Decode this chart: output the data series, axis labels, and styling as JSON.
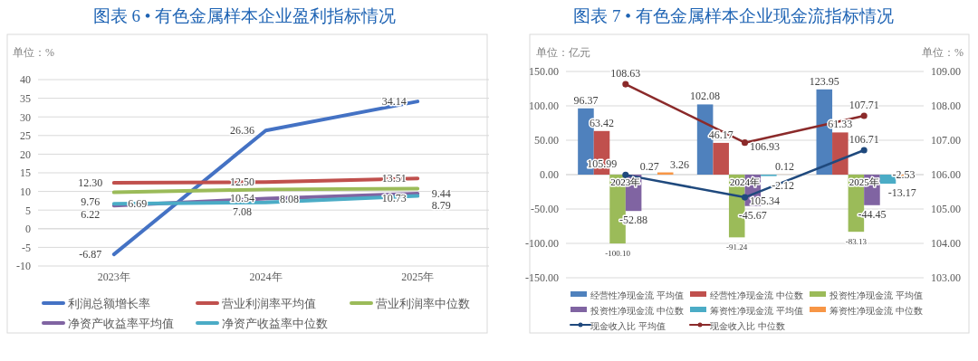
{
  "chart_data": [
    {
      "type": "line",
      "title": "图表 6 • 有色金属样本企业盈利指标情况",
      "ylabel": "单位：%",
      "categories": [
        "2023年",
        "2024年",
        "2025年"
      ],
      "series": [
        {
          "name": "利润总额增长率",
          "color": "#4472c4",
          "values": [
            -6.87,
            26.36,
            34.14
          ],
          "value_labels": [
            "-6.87",
            "26.36",
            "34.14"
          ]
        },
        {
          "name": "营业利润率平均值",
          "color": "#c0504d",
          "values": [
            12.3,
            12.5,
            13.51
          ],
          "value_labels": [
            "12.30",
            "12.50",
            "13.51"
          ]
        },
        {
          "name": "营业利润率中位数",
          "color": "#9bbb59",
          "values": [
            9.76,
            10.54,
            10.73
          ],
          "value_labels": [
            "9.76",
            "10.54",
            "10.73"
          ]
        },
        {
          "name": "净资产收益率平均值",
          "color": "#8064a2",
          "values": [
            6.22,
            8.08,
            9.44
          ],
          "value_labels": [
            "6.22",
            "8.08",
            "9.44"
          ]
        },
        {
          "name": "净资产收益率中位数",
          "color": "#4bacc6",
          "values": [
            6.69,
            7.08,
            8.79
          ],
          "value_labels": [
            "6.69",
            "7.08",
            "8.79"
          ]
        }
      ],
      "ylim": [
        -10,
        40
      ],
      "yticks": [
        -10,
        -5,
        0,
        5,
        10,
        15,
        20,
        25,
        30,
        35,
        40
      ],
      "grid": "y",
      "legend": "bottom"
    },
    {
      "type": "bar",
      "title": "图表 7 • 有色金属样本企业现金流指标情况",
      "ylabel": "单位：亿元",
      "y2label": "单位：%",
      "categories": [
        "2023年",
        "2024年",
        "2025年"
      ],
      "series": [
        {
          "name": "经营性净现金流 平均值",
          "color": "#4f81bd",
          "values": [
            96.37,
            102.08,
            123.95
          ],
          "value_labels": [
            "96.37",
            "102.08",
            "123.95"
          ]
        },
        {
          "name": "经营性净现金流 中位数",
          "color": "#c0504d",
          "values": [
            63.42,
            46.17,
            61.33
          ],
          "value_labels": [
            "63.42",
            "46.17",
            "61.33"
          ]
        },
        {
          "name": "投资性净现金流 平均值",
          "color": "#9bbb59",
          "values": [
            -100.1,
            -91.24,
            -83.13
          ],
          "value_labels": [
            "-100.10",
            "-91.24",
            "-83.13"
          ]
        },
        {
          "name": "投资性净现金流 中位数",
          "color": "#8064a2",
          "values": [
            -52.88,
            -45.67,
            -44.45
          ],
          "value_labels": [
            "-52.88",
            "-45.67",
            "-44.45"
          ]
        },
        {
          "name": "筹资性净现金流 平均值",
          "color": "#4bacc6",
          "values": [
            0.27,
            -2.12,
            -13.17
          ],
          "value_labels": [
            "0.27",
            "-2.12",
            "-13.17"
          ]
        },
        {
          "name": "筹资性净现金流 中位数",
          "color": "#f79646",
          "values": [
            3.26,
            0.12,
            -2.53
          ],
          "value_labels": [
            "3.26",
            "0.12",
            "-2.53"
          ]
        },
        {
          "name": "现金收入比 平均值",
          "color": "#1f497d",
          "type": "line",
          "axis": "y2",
          "values": [
            105.99,
            105.34,
            106.71
          ],
          "value_labels": [
            "105.99",
            "105.34",
            "106.71"
          ]
        },
        {
          "name": "现金收入比 中位数",
          "color": "#8b2a2a",
          "type": "line",
          "axis": "y2",
          "values": [
            108.63,
            106.93,
            107.71
          ],
          "value_labels": [
            "108.63",
            "106.93",
            "107.71"
          ]
        }
      ],
      "ylim": [
        -150,
        150
      ],
      "yticks": [
        {
          "value": -150,
          "label": "-150.00"
        },
        {
          "value": -100,
          "label": "-100.00"
        },
        {
          "value": -50,
          "label": "-50.00"
        },
        {
          "value": 0,
          "label": "0.00"
        },
        {
          "value": 50,
          "label": "50.00"
        },
        {
          "value": 100,
          "label": "100.00"
        },
        {
          "value": 150,
          "label": "150.00"
        }
      ],
      "y2lim": [
        103,
        109
      ],
      "y2ticks": [
        {
          "value": 103,
          "label": "103.00"
        },
        {
          "value": 104,
          "label": "104.00"
        },
        {
          "value": 105,
          "label": "105.00"
        },
        {
          "value": 106,
          "label": "106.00"
        },
        {
          "value": 107,
          "label": "107.00"
        },
        {
          "value": 108,
          "label": "108.00"
        },
        {
          "value": 109,
          "label": "109.00"
        }
      ],
      "grid": "y",
      "legend": "bottom",
      "marker": "circle"
    }
  ]
}
